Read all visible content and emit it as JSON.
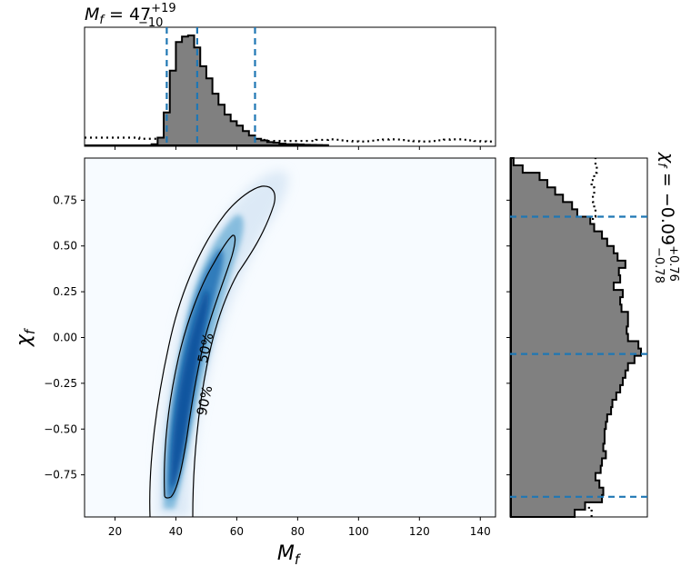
{
  "chart_data": {
    "type": "corner",
    "top_panel": {
      "title_prefix": "M",
      "title_sub": "f",
      "title_eq": " = 47",
      "title_sup": "+19",
      "title_low": "−10",
      "quantiles": [
        37,
        47,
        66
      ],
      "bin_edges": [
        10,
        12,
        14,
        16,
        18,
        20,
        22,
        24,
        26,
        28,
        30,
        32,
        34,
        36,
        38,
        40,
        42,
        44,
        46,
        48,
        50,
        52,
        54,
        56,
        58,
        60,
        62,
        64,
        66,
        68,
        70,
        72,
        74,
        76,
        78,
        80,
        82,
        84,
        86,
        88,
        90
      ],
      "posterior_density": [
        0,
        0,
        0,
        0,
        0,
        0,
        0,
        0,
        0,
        0,
        0,
        0.01,
        0.07,
        0.3,
        0.68,
        0.94,
        0.99,
        1.0,
        0.89,
        0.72,
        0.61,
        0.47,
        0.37,
        0.28,
        0.22,
        0.18,
        0.13,
        0.09,
        0.06,
        0.045,
        0.03,
        0.025,
        0.015,
        0.01,
        0.01,
        0.008,
        0.005,
        0.004,
        0.003,
        0.002
      ],
      "prior_density": [
        0.07,
        0.07,
        0.07,
        0.07,
        0.07,
        0.07,
        0.07,
        0.07,
        0.07,
        0.06,
        0.06,
        0.06,
        0.06,
        0.06,
        0.06,
        0.06,
        0.06,
        0.06,
        0.07,
        0.06,
        0.06,
        0.07,
        0.06,
        0.06,
        0.06,
        0.06,
        0.05,
        0.05,
        0.05,
        0.05,
        0.04,
        0.04,
        0.04,
        0.04,
        0.04,
        0.04,
        0.04,
        0.04,
        0.05,
        0.05
      ]
    },
    "main_panel": {
      "xlabel": "M",
      "xlabel_sub": "f",
      "ylabel": "χ",
      "ylabel_sub": "f",
      "xlim": [
        10,
        145
      ],
      "ylim": [
        -0.98,
        0.98
      ],
      "xticks": [
        20,
        40,
        60,
        80,
        100,
        120,
        140
      ],
      "yticks": [
        -0.75,
        -0.5,
        -0.25,
        0.0,
        0.25,
        0.5,
        0.75
      ],
      "ytick_labels": [
        "−0.75",
        "−0.50",
        "−0.25",
        "0.00",
        "0.25",
        "0.50",
        "0.75"
      ],
      "contour_labels": [
        "50%",
        "90%"
      ],
      "ridge": [
        {
          "x": 40,
          "y": -0.85
        },
        {
          "x": 42,
          "y": -0.4
        },
        {
          "x": 44,
          "y": -0.1
        },
        {
          "x": 48,
          "y": 0.2
        },
        {
          "x": 54,
          "y": 0.45
        },
        {
          "x": 60,
          "y": 0.6
        },
        {
          "x": 68,
          "y": 0.75
        }
      ]
    },
    "right_panel": {
      "title": "χ",
      "title_sub": "f",
      "title_eq": " = −0.09",
      "title_sup": "+0.76",
      "title_low": "−0.78",
      "quantiles": [
        -0.87,
        -0.09,
        0.66
      ],
      "bin_edges": [
        -0.98,
        -0.94,
        -0.9,
        -0.86,
        -0.82,
        -0.78,
        -0.74,
        -0.7,
        -0.66,
        -0.62,
        -0.58,
        -0.54,
        -0.5,
        -0.46,
        -0.42,
        -0.38,
        -0.34,
        -0.3,
        -0.26,
        -0.22,
        -0.18,
        -0.14,
        -0.1,
        -0.06,
        -0.02,
        0.02,
        0.06,
        0.1,
        0.14,
        0.18,
        0.22,
        0.26,
        0.3,
        0.34,
        0.38,
        0.42,
        0.46,
        0.5,
        0.54,
        0.58,
        0.62,
        0.66,
        0.7,
        0.74,
        0.78,
        0.82,
        0.86,
        0.9,
        0.94,
        0.98
      ],
      "posterior_density": [
        0.49,
        0.57,
        0.7,
        0.71,
        0.68,
        0.65,
        0.69,
        0.7,
        0.73,
        0.71,
        0.72,
        0.72,
        0.73,
        0.74,
        0.77,
        0.78,
        0.81,
        0.84,
        0.86,
        0.88,
        0.9,
        0.95,
        1.0,
        0.98,
        0.9,
        0.89,
        0.9,
        0.9,
        0.85,
        0.84,
        0.86,
        0.79,
        0.84,
        0.83,
        0.88,
        0.82,
        0.79,
        0.74,
        0.7,
        0.64,
        0.61,
        0.51,
        0.47,
        0.4,
        0.34,
        0.28,
        0.22,
        0.09,
        0.02
      ],
      "prior_density": [
        0.62,
        0.6,
        0.62,
        0.62,
        0.59,
        0.6,
        0.58,
        0.59,
        0.58,
        0.57,
        0.58,
        0.59,
        0.6,
        0.57,
        0.57,
        0.6,
        0.56,
        0.58,
        0.57,
        0.55,
        0.56,
        0.58,
        0.59,
        0.58,
        0.6,
        0.57,
        0.55,
        0.58,
        0.58,
        0.6,
        0.59,
        0.57,
        0.56,
        0.57,
        0.58,
        0.6,
        0.61,
        0.62,
        0.59,
        0.61,
        0.63,
        0.65,
        0.64,
        0.63,
        0.64,
        0.62,
        0.64,
        0.66,
        0.65
      ]
    },
    "colors": {
      "hist_fill": "#808080",
      "quantile_line": "#1f77b4",
      "density_dark": "#08306b",
      "density_mid": "#2171b5",
      "density_bg": "#f7fbff"
    }
  }
}
